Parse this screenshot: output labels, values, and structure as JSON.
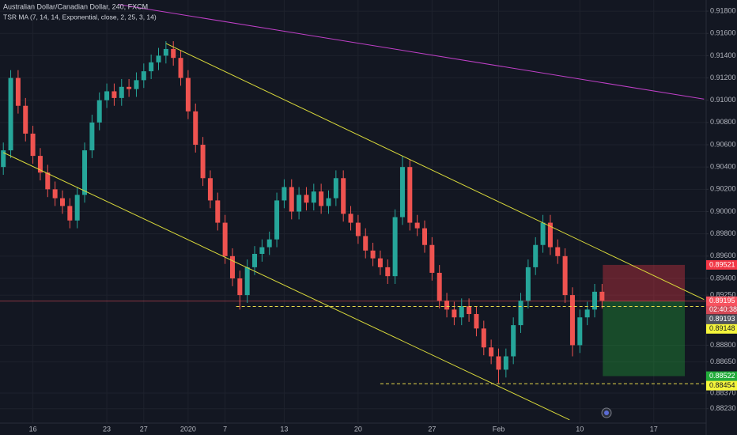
{
  "chart_data": {
    "type": "candlestick",
    "title": "Australian Dollar/Canadian Dollar, 240, FXCM",
    "subtitle": "TSR MA (7, 14, 14, Exponential, close, 2, 25, 3, 14)",
    "categories": [
      null,
      null,
      null,
      null,
      "16",
      null,
      null,
      null,
      null,
      null,
      null,
      null,
      null,
      null,
      "23",
      null,
      null,
      null,
      null,
      "27",
      null,
      null,
      null,
      null,
      null,
      "2020",
      null,
      null,
      null,
      null,
      "7",
      null,
      null,
      null,
      null,
      null,
      null,
      null,
      "13",
      null,
      null,
      null,
      null,
      null,
      null,
      null,
      null,
      null,
      "20",
      null,
      null,
      null,
      null,
      null,
      null,
      null,
      null,
      null,
      "27",
      null,
      null,
      null,
      null,
      null,
      null,
      null,
      null,
      "Feb",
      null,
      null,
      null,
      null,
      null,
      null,
      null,
      null,
      null,
      null,
      "10",
      null,
      null,
      null,
      null,
      null,
      null,
      null,
      null,
      null,
      "17",
      null,
      null,
      null,
      null,
      null,
      null
    ],
    "open": [
      0.904,
      0.9055,
      0.912,
      0.9095,
      0.907,
      0.905,
      0.9035,
      0.902,
      0.9012,
      0.9005,
      0.8992,
      0.9015,
      0.9055,
      0.908,
      0.91,
      0.9108,
      0.9102,
      0.9112,
      0.911,
      0.9118,
      0.9126,
      0.9134,
      0.914,
      0.9146,
      0.9138,
      0.912,
      0.909,
      0.906,
      0.903,
      0.901,
      0.899,
      0.896,
      0.894,
      0.8925,
      0.895,
      0.8962,
      0.8968,
      0.8975,
      0.901,
      0.9022,
      0.9,
      0.9015,
      0.9008,
      0.9018,
      0.9005,
      0.9012,
      0.903,
      0.8998,
      0.899,
      0.8978,
      0.8965,
      0.8958,
      0.895,
      0.8942,
      0.8995,
      0.904,
      0.899,
      0.8985,
      0.897,
      0.8945,
      0.892,
      0.8912,
      0.8905,
      0.8915,
      0.8908,
      0.8895,
      0.8878,
      0.887,
      0.8858,
      0.887,
      0.8898,
      0.892,
      0.895,
      0.897,
      0.899,
      0.8968,
      0.896,
      0.8925,
      0.888,
      0.8905,
      0.8912,
      0.8928,
      null,
      null,
      null,
      null,
      null,
      null,
      null,
      null,
      null,
      null,
      null,
      null,
      null
    ],
    "high": [
      0.9062,
      0.9127,
      0.9127,
      0.9102,
      0.9077,
      0.9057,
      0.9042,
      0.9027,
      0.9019,
      0.9012,
      0.9022,
      0.9062,
      0.9087,
      0.9107,
      0.9115,
      0.9115,
      0.9119,
      0.9119,
      0.9125,
      0.9133,
      0.9141,
      0.9147,
      0.9153,
      0.9153,
      0.9145,
      0.9127,
      0.9097,
      0.9067,
      0.9037,
      0.9017,
      0.8997,
      0.8967,
      0.8947,
      0.8957,
      0.8969,
      0.8975,
      0.8982,
      0.9017,
      0.9029,
      0.9029,
      0.9022,
      0.9022,
      0.9025,
      0.9025,
      0.9019,
      0.9037,
      0.9037,
      0.9005,
      0.8997,
      0.8985,
      0.8972,
      0.8965,
      0.8957,
      0.9002,
      0.905,
      0.9047,
      0.8997,
      0.8992,
      0.8977,
      0.8952,
      0.8927,
      0.8919,
      0.8922,
      0.8922,
      0.8915,
      0.8902,
      0.8885,
      0.8877,
      0.8877,
      0.8905,
      0.8927,
      0.8957,
      0.8977,
      0.8997,
      0.8997,
      0.8975,
      0.8967,
      0.8932,
      0.8912,
      0.8919,
      0.8935,
      0.8935,
      null,
      null,
      null,
      null,
      null,
      null,
      null,
      null,
      null,
      null,
      null,
      null,
      null
    ],
    "low": [
      0.9033,
      0.9048,
      0.9088,
      0.9063,
      0.9043,
      0.9028,
      0.9013,
      0.9005,
      0.8998,
      0.8985,
      0.8985,
      0.9008,
      0.9048,
      0.9073,
      0.9093,
      0.9095,
      0.9095,
      0.9103,
      0.9103,
      0.9111,
      0.9119,
      0.9127,
      0.9133,
      0.9131,
      0.9113,
      0.9083,
      0.9053,
      0.9023,
      0.9003,
      0.8983,
      0.8953,
      0.8933,
      0.8912,
      0.8918,
      0.8943,
      0.8955,
      0.8961,
      0.8968,
      0.9003,
      0.8993,
      0.8993,
      0.9001,
      0.9001,
      0.8998,
      0.8998,
      0.9005,
      0.8991,
      0.8983,
      0.8971,
      0.8958,
      0.8951,
      0.8943,
      0.8935,
      0.8935,
      0.8988,
      0.8983,
      0.8978,
      0.8963,
      0.8938,
      0.8913,
      0.8905,
      0.8898,
      0.8898,
      0.8901,
      0.8888,
      0.8871,
      0.8863,
      0.8846,
      0.8851,
      0.8863,
      0.8891,
      0.8913,
      0.8943,
      0.8963,
      0.8961,
      0.8953,
      0.8918,
      0.887,
      0.8873,
      0.8898,
      0.8905,
      0.8913,
      null,
      null,
      null,
      null,
      null,
      null,
      null,
      null,
      null,
      null,
      null,
      null,
      null
    ],
    "close": [
      0.9055,
      0.912,
      0.9095,
      0.907,
      0.905,
      0.9035,
      0.902,
      0.9012,
      0.9005,
      0.8992,
      0.9015,
      0.9055,
      0.908,
      0.91,
      0.9108,
      0.9102,
      0.9112,
      0.911,
      0.9118,
      0.9126,
      0.9134,
      0.914,
      0.9146,
      0.9138,
      0.912,
      0.909,
      0.906,
      0.903,
      0.901,
      0.899,
      0.896,
      0.894,
      0.8925,
      0.895,
      0.8962,
      0.8968,
      0.8975,
      0.901,
      0.9022,
      0.9,
      0.9015,
      0.9008,
      0.9018,
      0.9005,
      0.9012,
      0.903,
      0.8998,
      0.899,
      0.8978,
      0.8965,
      0.8958,
      0.895,
      0.8942,
      0.8995,
      0.904,
      0.899,
      0.8985,
      0.897,
      0.8945,
      0.892,
      0.8912,
      0.8905,
      0.8915,
      0.8908,
      0.8895,
      0.8878,
      0.887,
      0.8858,
      0.887,
      0.8898,
      0.892,
      0.895,
      0.897,
      0.899,
      0.8968,
      0.896,
      0.8925,
      0.888,
      0.8905,
      0.8912,
      0.8928,
      0.892,
      null,
      null,
      null,
      null,
      null,
      null,
      null,
      null,
      null,
      null,
      null,
      null,
      null
    ],
    "up_color": "#26a69a",
    "down_color": "#ef5350",
    "ylim": [
      0.881,
      0.919
    ],
    "yticks": [
      {
        "value": 0.918,
        "label": "0.91800"
      },
      {
        "value": 0.916,
        "label": "0.91600"
      },
      {
        "value": 0.914,
        "label": "0.91400"
      },
      {
        "value": 0.912,
        "label": "0.91200"
      },
      {
        "value": 0.91,
        "label": "0.91000"
      },
      {
        "value": 0.908,
        "label": "0.90800"
      },
      {
        "value": 0.906,
        "label": "0.90600"
      },
      {
        "value": 0.904,
        "label": "0.90400"
      },
      {
        "value": 0.902,
        "label": "0.90200"
      },
      {
        "value": 0.9,
        "label": "0.90000"
      },
      {
        "value": 0.898,
        "label": "0.89800"
      },
      {
        "value": 0.896,
        "label": "0.89600"
      },
      {
        "value": 0.894,
        "label": "0.89400"
      },
      {
        "value": 0.8925,
        "label": "0.89250"
      },
      {
        "value": 0.888,
        "label": "0.88800"
      },
      {
        "value": 0.8865,
        "label": "0.88650"
      },
      {
        "value": 0.8837,
        "label": "0.88370"
      },
      {
        "value": 0.8823,
        "label": "0.88230"
      }
    ],
    "grid": true,
    "trend_lines": [
      {
        "color": "#d8d83a",
        "dash": false,
        "x": [
          22,
          94.8
        ],
        "y": [
          0.9151,
          0.8921
        ]
      },
      {
        "color": "#d8d83a",
        "dash": false,
        "x": [
          0,
          76.6
        ],
        "y": [
          0.9053,
          0.8813
        ]
      },
      {
        "color": "#c040c8",
        "dash": false,
        "x": [
          15.6,
          94.8
        ],
        "y": [
          0.9186,
          0.9101
        ]
      },
      {
        "color": "#e8d84a",
        "dash": true,
        "x": [
          31.5,
          94.8
        ],
        "y": [
          0.89148,
          0.89148
        ]
      },
      {
        "color": "#e8d84a",
        "dash": true,
        "x": [
          51,
          94.8
        ],
        "y": [
          0.88454,
          0.88454
        ]
      }
    ],
    "position": {
      "x": [
        81.1,
        92.2
      ],
      "stop": 0.89521,
      "entry": 0.89195,
      "target": 0.88522
    },
    "price_labels": [
      {
        "value": 0.89521,
        "label": "0.89521",
        "color": "#f23645"
      },
      {
        "value": 0.89195,
        "label": "0.89195",
        "color": "#f7525f",
        "countdown": "02:40:38"
      },
      {
        "value": 0.89193,
        "label": "0.89193",
        "color": "#50535e"
      },
      {
        "value": 0.89148,
        "label": "0.89148",
        "color": "#f5f53b"
      },
      {
        "value": 0.88522,
        "label": "0.88522",
        "color": "#22ab3a"
      },
      {
        "value": 0.88454,
        "label": "0.88454",
        "color": "#f5f53b"
      }
    ]
  }
}
